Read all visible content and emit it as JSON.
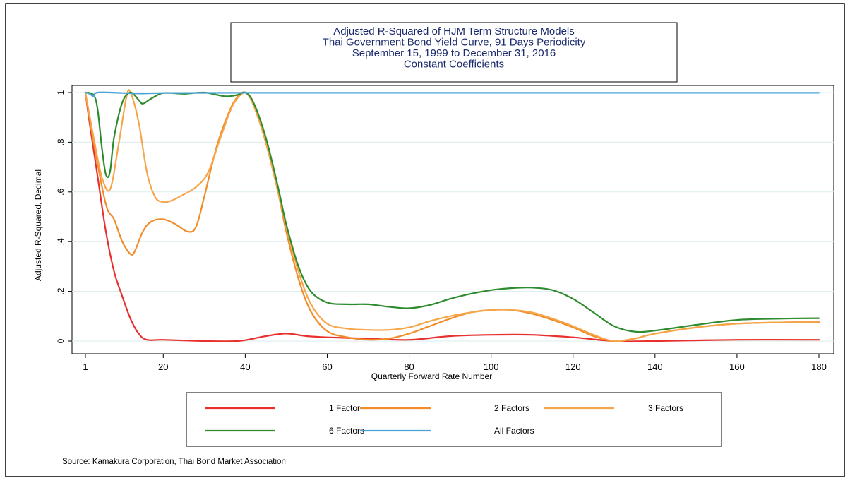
{
  "chart_data": {
    "type": "line",
    "title": [
      "Adjusted R-Squared of HJM Term Structure Models",
      "Thai Government Bond Yield Curve, 91 Days Periodicity",
      "September 15, 1999 to December 31, 2016",
      "Constant Coefficients"
    ],
    "xlabel": "Quarterly Forward Rate Number",
    "ylabel": "Adjusted R-Squared, Decimal",
    "xlim": [
      1,
      180
    ],
    "ylim": [
      0,
      1
    ],
    "x_ticks": [
      1,
      20,
      40,
      60,
      80,
      100,
      120,
      140,
      160,
      180
    ],
    "y_ticks": [
      {
        "value": 0,
        "label": "0"
      },
      {
        "value": 0.2,
        "label": ".2"
      },
      {
        "value": 0.4,
        "label": ".4"
      },
      {
        "value": 0.6,
        "label": ".6"
      },
      {
        "value": 0.8,
        "label": ".8"
      },
      {
        "value": 1,
        "label": "1"
      }
    ],
    "grid": "horizontal",
    "legend_position": "bottom",
    "source": "Source: Kamakura Corporation, Thai Bond Market Association",
    "series": [
      {
        "name": "1 Factor",
        "color": "#e8312f",
        "points": [
          [
            1,
            1.0
          ],
          [
            2,
            0.88
          ],
          [
            4,
            0.66
          ],
          [
            6,
            0.44
          ],
          [
            8,
            0.28
          ],
          [
            10,
            0.18
          ],
          [
            12,
            0.09
          ],
          [
            14,
            0.03
          ],
          [
            16,
            0.005
          ],
          [
            20,
            0.005
          ],
          [
            30,
            0.0
          ],
          [
            38,
            0.0
          ],
          [
            42,
            0.01
          ],
          [
            45,
            0.02
          ],
          [
            50,
            0.03
          ],
          [
            55,
            0.02
          ],
          [
            60,
            0.015
          ],
          [
            70,
            0.01
          ],
          [
            80,
            0.005
          ],
          [
            90,
            0.02
          ],
          [
            100,
            0.025
          ],
          [
            110,
            0.025
          ],
          [
            120,
            0.015
          ],
          [
            130,
            0.0
          ],
          [
            140,
            0.0
          ],
          [
            160,
            0.005
          ],
          [
            180,
            0.005
          ]
        ]
      },
      {
        "name": "2 Factors",
        "color": "#f28c28",
        "points": [
          [
            1,
            1.0
          ],
          [
            3,
            0.8
          ],
          [
            6,
            0.55
          ],
          [
            8,
            0.49
          ],
          [
            10,
            0.4
          ],
          [
            12,
            0.35
          ],
          [
            13,
            0.36
          ],
          [
            15,
            0.44
          ],
          [
            17,
            0.48
          ],
          [
            20,
            0.49
          ],
          [
            23,
            0.47
          ],
          [
            26,
            0.44
          ],
          [
            28,
            0.46
          ],
          [
            30,
            0.58
          ],
          [
            33,
            0.78
          ],
          [
            36,
            0.92
          ],
          [
            38,
            0.98
          ],
          [
            40,
            1.0
          ],
          [
            42,
            0.95
          ],
          [
            45,
            0.8
          ],
          [
            48,
            0.6
          ],
          [
            50,
            0.44
          ],
          [
            53,
            0.25
          ],
          [
            56,
            0.12
          ],
          [
            60,
            0.04
          ],
          [
            65,
            0.015
          ],
          [
            70,
            0.005
          ],
          [
            75,
            0.01
          ],
          [
            80,
            0.03
          ],
          [
            85,
            0.06
          ],
          [
            90,
            0.09
          ],
          [
            95,
            0.115
          ],
          [
            100,
            0.125
          ],
          [
            105,
            0.125
          ],
          [
            110,
            0.11
          ],
          [
            115,
            0.085
          ],
          [
            120,
            0.055
          ],
          [
            125,
            0.02
          ],
          [
            130,
            0.0
          ],
          [
            135,
            0.01
          ],
          [
            140,
            0.03
          ],
          [
            150,
            0.055
          ],
          [
            160,
            0.07
          ],
          [
            170,
            0.075
          ],
          [
            180,
            0.075
          ]
        ]
      },
      {
        "name": "3 Factors",
        "color": "#f5a64a",
        "points": [
          [
            1,
            1.0
          ],
          [
            3,
            0.82
          ],
          [
            5,
            0.66
          ],
          [
            7,
            0.61
          ],
          [
            9,
            0.78
          ],
          [
            11,
            0.98
          ],
          [
            12,
            1.0
          ],
          [
            14,
            0.88
          ],
          [
            16,
            0.68
          ],
          [
            18,
            0.58
          ],
          [
            20,
            0.56
          ],
          [
            22,
            0.565
          ],
          [
            25,
            0.59
          ],
          [
            28,
            0.62
          ],
          [
            31,
            0.68
          ],
          [
            34,
            0.82
          ],
          [
            37,
            0.95
          ],
          [
            40,
            1.0
          ],
          [
            42,
            0.95
          ],
          [
            45,
            0.8
          ],
          [
            48,
            0.6
          ],
          [
            50,
            0.46
          ],
          [
            53,
            0.28
          ],
          [
            56,
            0.15
          ],
          [
            60,
            0.07
          ],
          [
            65,
            0.05
          ],
          [
            70,
            0.045
          ],
          [
            75,
            0.045
          ],
          [
            80,
            0.055
          ],
          [
            85,
            0.08
          ],
          [
            90,
            0.1
          ],
          [
            95,
            0.115
          ],
          [
            100,
            0.125
          ],
          [
            105,
            0.125
          ],
          [
            110,
            0.115
          ],
          [
            115,
            0.09
          ],
          [
            120,
            0.06
          ],
          [
            125,
            0.025
          ],
          [
            130,
            0.0
          ],
          [
            135,
            0.01
          ],
          [
            140,
            0.03
          ],
          [
            150,
            0.055
          ],
          [
            160,
            0.07
          ],
          [
            170,
            0.075
          ],
          [
            180,
            0.078
          ]
        ]
      },
      {
        "name": "6 Factors",
        "color": "#2e8b2e",
        "points": [
          [
            1,
            1.0
          ],
          [
            3,
            0.99
          ],
          [
            4,
            0.93
          ],
          [
            5,
            0.78
          ],
          [
            6,
            0.67
          ],
          [
            7,
            0.68
          ],
          [
            8,
            0.82
          ],
          [
            10,
            0.96
          ],
          [
            12,
            1.0
          ],
          [
            14,
            0.97
          ],
          [
            15,
            0.955
          ],
          [
            17,
            0.975
          ],
          [
            20,
            0.998
          ],
          [
            25,
            0.995
          ],
          [
            30,
            1.0
          ],
          [
            35,
            0.985
          ],
          [
            38,
            0.99
          ],
          [
            40,
            1.0
          ],
          [
            42,
            0.96
          ],
          [
            45,
            0.82
          ],
          [
            48,
            0.62
          ],
          [
            50,
            0.47
          ],
          [
            53,
            0.3
          ],
          [
            56,
            0.2
          ],
          [
            60,
            0.155
          ],
          [
            65,
            0.148
          ],
          [
            70,
            0.148
          ],
          [
            75,
            0.138
          ],
          [
            80,
            0.132
          ],
          [
            85,
            0.145
          ],
          [
            90,
            0.17
          ],
          [
            95,
            0.19
          ],
          [
            100,
            0.205
          ],
          [
            105,
            0.213
          ],
          [
            110,
            0.215
          ],
          [
            115,
            0.205
          ],
          [
            120,
            0.17
          ],
          [
            125,
            0.115
          ],
          [
            130,
            0.06
          ],
          [
            135,
            0.038
          ],
          [
            140,
            0.042
          ],
          [
            150,
            0.065
          ],
          [
            160,
            0.085
          ],
          [
            170,
            0.09
          ],
          [
            180,
            0.092
          ]
        ]
      },
      {
        "name": "All Factors",
        "color": "#4aa3d8",
        "points": [
          [
            1,
            1.0
          ],
          [
            2,
            0.995
          ],
          [
            3,
            0.985
          ],
          [
            4,
            1.0
          ],
          [
            10,
            0.998
          ],
          [
            15,
            0.996
          ],
          [
            20,
            0.998
          ],
          [
            40,
            0.999
          ],
          [
            100,
            0.999
          ],
          [
            180,
            0.999
          ]
        ]
      }
    ]
  }
}
